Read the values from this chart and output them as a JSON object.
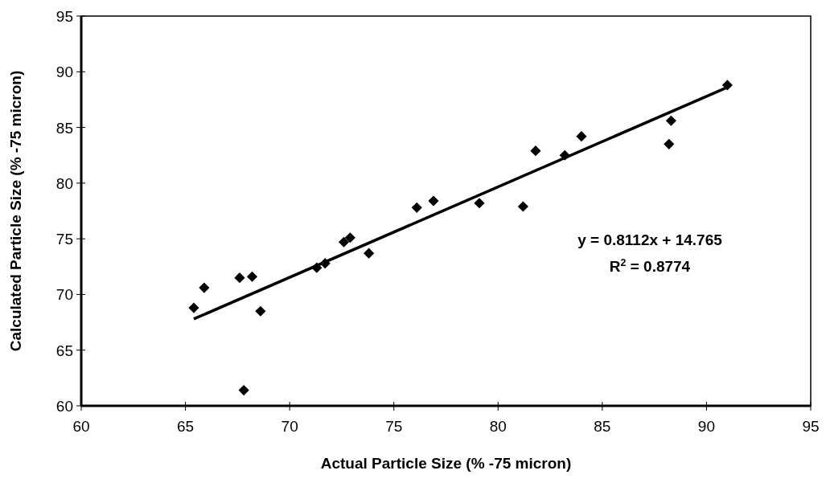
{
  "chart_data": {
    "type": "scatter",
    "xlabel": "Actual Particle Size (% -75 micron)",
    "ylabel": "Calculated Particle Size (% -75 micron)",
    "xlim": [
      60,
      95
    ],
    "xticks": [
      60,
      65,
      70,
      75,
      80,
      85,
      90,
      95
    ],
    "ylim": [
      60,
      95
    ],
    "yticks": [
      60,
      65,
      70,
      75,
      80,
      85,
      90,
      95
    ],
    "grid": false,
    "annotations": [
      "y = 0.8112x + 14.765",
      "R$^{2}$ = 0.8774"
    ],
    "series": [
      {
        "marker": "diamond",
        "color": "#000000",
        "x": [
          65.4,
          65.9,
          67.6,
          68.2,
          67.8,
          68.6,
          71.3,
          71.7,
          72.6,
          72.9,
          73.8,
          76.1,
          76.9,
          79.1,
          81.2,
          81.8,
          83.2,
          84.0,
          88.2,
          88.3,
          91.0
        ],
        "values": [
          68.8,
          70.6,
          71.5,
          71.6,
          61.4,
          68.5,
          72.4,
          72.8,
          74.7,
          75.1,
          73.7,
          77.8,
          78.4,
          78.2,
          77.9,
          82.9,
          82.5,
          84.2,
          83.5,
          85.6,
          88.8
        ]
      },
      {
        "type": "line",
        "color": "#000000",
        "x": [
          65.4,
          91.0
        ],
        "values": [
          67.8,
          88.6
        ]
      }
    ]
  }
}
